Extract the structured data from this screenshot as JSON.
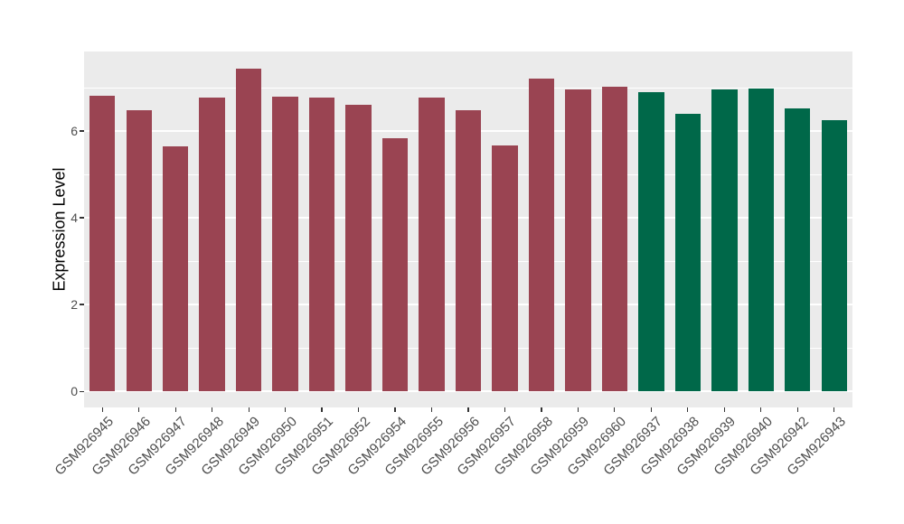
{
  "figure": {
    "canvas_bg": "#ffffff",
    "panel_bg": "#ebebeb",
    "grid_color": "#ffffff",
    "tick_text_color": "#4d4d4d",
    "axis_title_color": "#000000",
    "tick_mark_color": "#333333"
  },
  "chart_data": {
    "type": "bar",
    "title": "",
    "xlabel": "",
    "ylabel": "Expression Level",
    "ylim": [
      0,
      7.82
    ],
    "y_ticks": [
      0,
      2,
      4,
      6
    ],
    "y_minor_ticks": [
      1,
      3,
      5,
      7
    ],
    "grid": true,
    "legend": "none",
    "group_colors": {
      "left_group": "#9a4452",
      "right_group": "#006849"
    },
    "bars": [
      {
        "label": "GSM926945",
        "value": 6.82,
        "group": "left_group"
      },
      {
        "label": "GSM926946",
        "value": 6.48,
        "group": "left_group"
      },
      {
        "label": "GSM926947",
        "value": 5.64,
        "group": "left_group"
      },
      {
        "label": "GSM926948",
        "value": 6.78,
        "group": "left_group"
      },
      {
        "label": "GSM926949",
        "value": 7.43,
        "group": "left_group"
      },
      {
        "label": "GSM926950",
        "value": 6.8,
        "group": "left_group"
      },
      {
        "label": "GSM926951",
        "value": 6.78,
        "group": "left_group"
      },
      {
        "label": "GSM926952",
        "value": 6.6,
        "group": "left_group"
      },
      {
        "label": "GSM926954",
        "value": 5.84,
        "group": "left_group"
      },
      {
        "label": "GSM926955",
        "value": 6.78,
        "group": "left_group"
      },
      {
        "label": "GSM926956",
        "value": 6.48,
        "group": "left_group"
      },
      {
        "label": "GSM926957",
        "value": 5.66,
        "group": "left_group"
      },
      {
        "label": "GSM926958",
        "value": 7.2,
        "group": "left_group"
      },
      {
        "label": "GSM926959",
        "value": 6.95,
        "group": "left_group"
      },
      {
        "label": "GSM926960",
        "value": 7.02,
        "group": "left_group"
      },
      {
        "label": "GSM926937",
        "value": 6.9,
        "group": "right_group"
      },
      {
        "label": "GSM926938",
        "value": 6.4,
        "group": "right_group"
      },
      {
        "label": "GSM926939",
        "value": 6.96,
        "group": "right_group"
      },
      {
        "label": "GSM926940",
        "value": 6.98,
        "group": "right_group"
      },
      {
        "label": "GSM926942",
        "value": 6.52,
        "group": "right_group"
      },
      {
        "label": "GSM926943",
        "value": 6.25,
        "group": "right_group"
      }
    ]
  }
}
